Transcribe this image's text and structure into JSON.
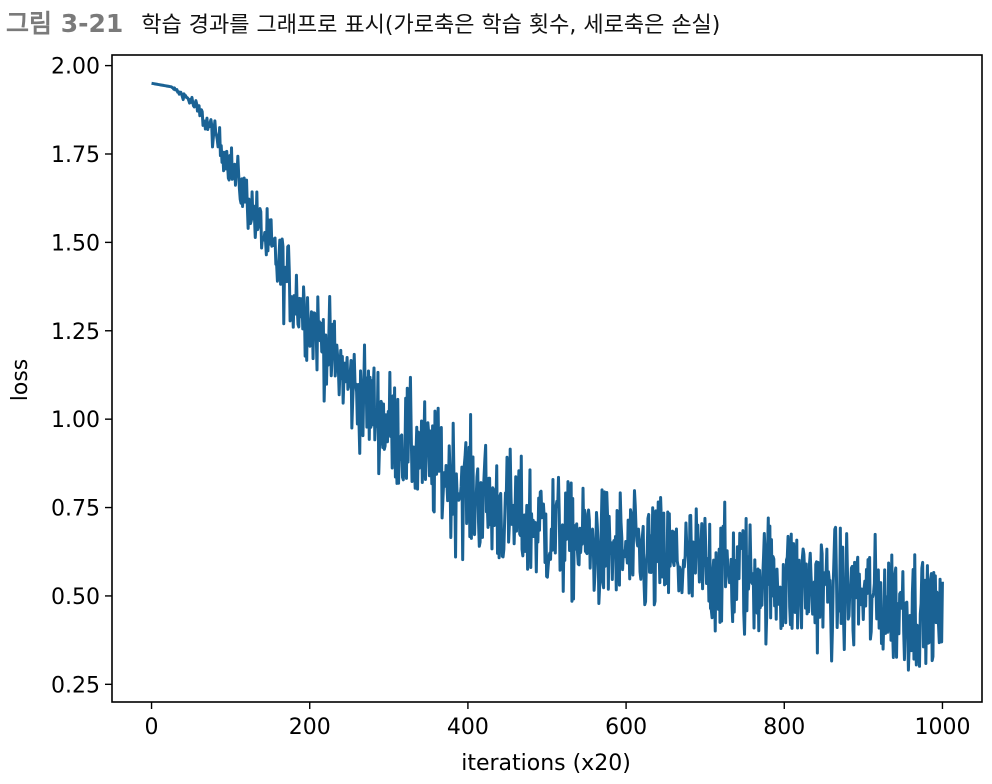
{
  "caption": {
    "number": "그림 3-21",
    "text": "학습 경과를 그래프로 표시(가로축은 학습 횟수, 세로축은 손실)"
  },
  "chart_data": {
    "type": "line",
    "title": "",
    "xlabel": "iterations (x20)",
    "ylabel": "loss",
    "xlim": [
      -50,
      1050
    ],
    "ylim": [
      0.2,
      2.03
    ],
    "xticks": [
      0,
      200,
      400,
      600,
      800,
      1000
    ],
    "xtick_labels": [
      "0",
      "200",
      "400",
      "600",
      "800",
      "1000"
    ],
    "yticks": [
      0.25,
      0.5,
      0.75,
      1.0,
      1.25,
      1.5,
      1.75,
      2.0
    ],
    "ytick_labels": [
      "0.25",
      "0.50",
      "0.75",
      "1.00",
      "1.25",
      "1.50",
      "1.75",
      "2.00"
    ],
    "grid": false,
    "line_color": "#1a6294",
    "series": [
      {
        "x": [
          0,
          25,
          50,
          75,
          100,
          125,
          150,
          175,
          200,
          250,
          300,
          350,
          400,
          450,
          500,
          550,
          600,
          650,
          700,
          750,
          800,
          850,
          900,
          950,
          1000
        ],
        "mean": [
          1.95,
          1.94,
          1.9,
          1.82,
          1.72,
          1.6,
          1.48,
          1.38,
          1.28,
          1.1,
          0.98,
          0.88,
          0.8,
          0.73,
          0.69,
          0.65,
          0.62,
          0.6,
          0.58,
          0.56,
          0.54,
          0.52,
          0.5,
          0.47,
          0.44
        ],
        "noise": [
          0.0,
          0.0,
          0.01,
          0.02,
          0.03,
          0.04,
          0.05,
          0.06,
          0.06,
          0.07,
          0.08,
          0.08,
          0.09,
          0.09,
          0.09,
          0.09,
          0.09,
          0.09,
          0.09,
          0.09,
          0.09,
          0.09,
          0.09,
          0.09,
          0.09
        ],
        "min": [
          1.95,
          1.94,
          1.88,
          1.78,
          1.66,
          1.52,
          1.36,
          1.18,
          1.1,
          0.85,
          0.72,
          0.62,
          0.6,
          0.52,
          0.45,
          0.48,
          0.42,
          0.38,
          0.4,
          0.38,
          0.35,
          0.32,
          0.3,
          0.28,
          0.33
        ],
        "max": [
          1.95,
          1.94,
          1.92,
          1.86,
          1.78,
          1.68,
          1.58,
          1.5,
          1.45,
          1.3,
          1.2,
          1.05,
          1.02,
          0.92,
          0.85,
          0.8,
          0.8,
          0.79,
          0.78,
          0.75,
          0.72,
          0.7,
          0.68,
          0.66,
          0.54
        ],
        "n_points": 1000
      }
    ]
  }
}
